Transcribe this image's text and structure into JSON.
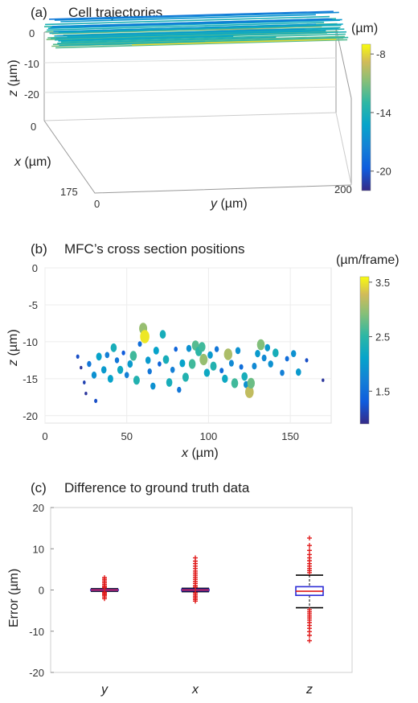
{
  "panels": {
    "a": {
      "letter": "(a)",
      "title": "Cell trajectories"
    },
    "b": {
      "letter": "(b)",
      "title": "MFC’s cross section positions"
    },
    "c": {
      "letter": "(c)",
      "title": "Difference to ground truth data"
    }
  },
  "chart_data": [
    {
      "id": "a",
      "type": "line",
      "title": "Cell trajectories",
      "zlabel_italic": "z",
      "zlabel_unit": " (µm)",
      "xlabel_italic": "x",
      "xlabel_unit": " (µm)",
      "ylabel_italic": "y",
      "ylabel_unit": " (µm)",
      "z_ticks": [
        "0",
        "-10",
        "-20"
      ],
      "x_ticks": [
        "0",
        "175"
      ],
      "y_ticks": [
        "0",
        "200"
      ],
      "zlim": [
        -25,
        0
      ],
      "xlim": [
        0,
        175
      ],
      "ylim": [
        0,
        200
      ],
      "colorbar": {
        "label": "(µm)",
        "min": -22,
        "max": -7,
        "ticks": [
          "-8",
          "-14",
          "-20"
        ],
        "tick_values": [
          -8,
          -14,
          -20
        ]
      },
      "trajectories": [
        {
          "x": 0,
          "z": -14,
          "y_start": 0,
          "y_end": 200,
          "color_value": -13
        },
        {
          "x": 5,
          "z": -12,
          "y_start": 5,
          "y_end": 190,
          "color_value": -10
        },
        {
          "x": 10,
          "z": -15,
          "y_start": 0,
          "y_end": 195,
          "color_value": -14
        },
        {
          "x": 15,
          "z": -13,
          "y_start": 0,
          "y_end": 200,
          "color_value": -12
        },
        {
          "x": 20,
          "z": -16,
          "y_start": 10,
          "y_end": 185,
          "color_value": -16
        },
        {
          "x": 25,
          "z": -11,
          "y_start": 0,
          "y_end": 200,
          "color_value": -11
        },
        {
          "x": 30,
          "z": -14,
          "y_start": 0,
          "y_end": 190,
          "color_value": -14
        },
        {
          "x": 35,
          "z": -17,
          "y_start": 5,
          "y_end": 200,
          "color_value": -17
        },
        {
          "x": 40,
          "z": -12,
          "y_start": 0,
          "y_end": 180,
          "color_value": -12
        },
        {
          "x": 45,
          "z": -15,
          "y_start": 0,
          "y_end": 200,
          "color_value": -15
        },
        {
          "x": 50,
          "z": -13,
          "y_start": 10,
          "y_end": 200,
          "color_value": -13
        },
        {
          "x": 55,
          "z": -18,
          "y_start": 0,
          "y_end": 195,
          "color_value": -18
        },
        {
          "x": 60,
          "z": -14,
          "y_start": 0,
          "y_end": 200,
          "color_value": -14
        },
        {
          "x": 65,
          "z": -12,
          "y_start": 15,
          "y_end": 190,
          "color_value": -12
        },
        {
          "x": 70,
          "z": -16,
          "y_start": 0,
          "y_end": 200,
          "color_value": -16
        },
        {
          "x": 75,
          "z": -13,
          "y_start": 0,
          "y_end": 185,
          "color_value": -13
        },
        {
          "x": 80,
          "z": -15,
          "y_start": 5,
          "y_end": 200,
          "color_value": -15
        },
        {
          "x": 85,
          "z": -11,
          "y_start": 0,
          "y_end": 200,
          "color_value": -11
        },
        {
          "x": 90,
          "z": -17,
          "y_start": 0,
          "y_end": 190,
          "color_value": -17
        },
        {
          "x": 95,
          "z": -14,
          "y_start": 10,
          "y_end": 200,
          "color_value": -14
        },
        {
          "x": 100,
          "z": -12,
          "y_start": 0,
          "y_end": 200,
          "color_value": -12
        },
        {
          "x": 105,
          "z": -16,
          "y_start": 0,
          "y_end": 180,
          "color_value": -16
        },
        {
          "x": 110,
          "z": -13,
          "y_start": 5,
          "y_end": 200,
          "color_value": -13
        },
        {
          "x": 115,
          "z": -15,
          "y_start": 0,
          "y_end": 195,
          "color_value": -15
        },
        {
          "x": 120,
          "z": -14,
          "y_start": 0,
          "y_end": 200,
          "color_value": -14
        },
        {
          "x": 125,
          "z": -18,
          "y_start": 20,
          "y_end": 190,
          "color_value": -18
        },
        {
          "x": 130,
          "z": -12,
          "y_start": 0,
          "y_end": 200,
          "color_value": -12
        },
        {
          "x": 135,
          "z": -15,
          "y_start": 0,
          "y_end": 185,
          "color_value": -15
        },
        {
          "x": 140,
          "z": -13,
          "y_start": 10,
          "y_end": 200,
          "color_value": -13
        },
        {
          "x": 145,
          "z": -16,
          "y_start": 0,
          "y_end": 170,
          "color_value": -16
        },
        {
          "x": 150,
          "z": -14,
          "y_start": 0,
          "y_end": 150,
          "color_value": -14
        },
        {
          "x": 160,
          "z": -15,
          "y_start": 0,
          "y_end": 120,
          "color_value": -15
        },
        {
          "x": 170,
          "z": -14,
          "y_start": 0,
          "y_end": 100,
          "color_value": -14
        },
        {
          "x": 3,
          "z": -8,
          "y_start": 60,
          "y_end": 200,
          "color_value": -8
        }
      ]
    },
    {
      "id": "b",
      "type": "scatter",
      "title": "MFC’s cross section positions",
      "xlabel_italic": "x",
      "xlabel_unit": " (µm)",
      "ylabel_italic": "z",
      "ylabel_unit": " (µm)",
      "xlim": [
        0,
        175
      ],
      "ylim": [
        -21,
        0
      ],
      "x_ticks": [
        0,
        50,
        100,
        150
      ],
      "y_ticks": [
        0,
        -5,
        -10,
        -15,
        -20
      ],
      "grid": true,
      "colorbar": {
        "label": "(µm/frame)",
        "min": 0.9,
        "max": 3.6,
        "ticks": [
          "3.5",
          "2.5",
          "1.5"
        ],
        "tick_values": [
          3.5,
          2.5,
          1.5
        ]
      },
      "points": [
        {
          "x": 20,
          "z": -12,
          "v": 1.2
        },
        {
          "x": 22,
          "z": -13.5,
          "v": 1.0
        },
        {
          "x": 24,
          "z": -15.5,
          "v": 1.1
        },
        {
          "x": 25,
          "z": -17,
          "v": 1.0
        },
        {
          "x": 27,
          "z": -13,
          "v": 1.6
        },
        {
          "x": 30,
          "z": -14.5,
          "v": 1.9
        },
        {
          "x": 31,
          "z": -18,
          "v": 1.2
        },
        {
          "x": 33,
          "z": -12,
          "v": 2.1
        },
        {
          "x": 36,
          "z": -13.8,
          "v": 2.0
        },
        {
          "x": 38,
          "z": -11.8,
          "v": 1.7
        },
        {
          "x": 40,
          "z": -15,
          "v": 2.1
        },
        {
          "x": 42,
          "z": -10.8,
          "v": 2.3
        },
        {
          "x": 44,
          "z": -12.5,
          "v": 1.6
        },
        {
          "x": 46,
          "z": -13.8,
          "v": 2.2
        },
        {
          "x": 48,
          "z": -11.5,
          "v": 1.3
        },
        {
          "x": 50,
          "z": -14.5,
          "v": 1.7
        },
        {
          "x": 52,
          "z": -13,
          "v": 2.0
        },
        {
          "x": 54,
          "z": -11.9,
          "v": 2.6
        },
        {
          "x": 56,
          "z": -15.2,
          "v": 2.4
        },
        {
          "x": 58,
          "z": -10.3,
          "v": 1.5
        },
        {
          "x": 60,
          "z": -8.2,
          "v": 3.0
        },
        {
          "x": 61,
          "z": -9.3,
          "v": 3.5
        },
        {
          "x": 63,
          "z": -12.5,
          "v": 2.0
        },
        {
          "x": 64,
          "z": -14,
          "v": 1.6
        },
        {
          "x": 66,
          "z": -16,
          "v": 1.9
        },
        {
          "x": 68,
          "z": -11.2,
          "v": 2.1
        },
        {
          "x": 70,
          "z": -13,
          "v": 1.4
        },
        {
          "x": 72,
          "z": -9.0,
          "v": 2.3
        },
        {
          "x": 74,
          "z": -12.4,
          "v": 2.3
        },
        {
          "x": 76,
          "z": -15.5,
          "v": 2.3
        },
        {
          "x": 78,
          "z": -13.8,
          "v": 1.7
        },
        {
          "x": 80,
          "z": -11,
          "v": 1.4
        },
        {
          "x": 82,
          "z": -16.5,
          "v": 1.6
        },
        {
          "x": 84,
          "z": -12.9,
          "v": 2.1
        },
        {
          "x": 86,
          "z": -14.8,
          "v": 2.4
        },
        {
          "x": 88,
          "z": -10.9,
          "v": 1.9
        },
        {
          "x": 90,
          "z": -13,
          "v": 2.6
        },
        {
          "x": 92,
          "z": -10.5,
          "v": 2.7
        },
        {
          "x": 94,
          "z": -11.3,
          "v": 2.5
        },
        {
          "x": 96,
          "z": -10.7,
          "v": 2.6
        },
        {
          "x": 97,
          "z": -12.4,
          "v": 3.0
        },
        {
          "x": 99,
          "z": -14.2,
          "v": 2.2
        },
        {
          "x": 101,
          "z": -11.8,
          "v": 2.0
        },
        {
          "x": 103,
          "z": -13.3,
          "v": 2.4
        },
        {
          "x": 105,
          "z": -11.0,
          "v": 1.6
        },
        {
          "x": 108,
          "z": -13.9,
          "v": 1.5
        },
        {
          "x": 110,
          "z": -15.0,
          "v": 2.2
        },
        {
          "x": 112,
          "z": -11.7,
          "v": 3.1
        },
        {
          "x": 114,
          "z": -12.9,
          "v": 1.8
        },
        {
          "x": 116,
          "z": -15.6,
          "v": 2.6
        },
        {
          "x": 118,
          "z": -11.2,
          "v": 1.9
        },
        {
          "x": 120,
          "z": -13.4,
          "v": 1.5
        },
        {
          "x": 122,
          "z": -14.7,
          "v": 2.3
        },
        {
          "x": 123,
          "z": -15.8,
          "v": 1.9
        },
        {
          "x": 125,
          "z": -16.8,
          "v": 3.2
        },
        {
          "x": 126,
          "z": -15.6,
          "v": 2.8
        },
        {
          "x": 128,
          "z": -13.3,
          "v": 1.8
        },
        {
          "x": 130,
          "z": -11.6,
          "v": 2.0
        },
        {
          "x": 132,
          "z": -10.4,
          "v": 2.9
        },
        {
          "x": 134,
          "z": -12.2,
          "v": 1.8
        },
        {
          "x": 136,
          "z": -10.8,
          "v": 2.0
        },
        {
          "x": 138,
          "z": -13.0,
          "v": 1.9
        },
        {
          "x": 141,
          "z": -11.5,
          "v": 2.3
        },
        {
          "x": 145,
          "z": -14.2,
          "v": 1.7
        },
        {
          "x": 148,
          "z": -12.3,
          "v": 1.5
        },
        {
          "x": 152,
          "z": -11.6,
          "v": 1.9
        },
        {
          "x": 155,
          "z": -14.1,
          "v": 2.0
        },
        {
          "x": 160,
          "z": -12.5,
          "v": 1.2
        },
        {
          "x": 170,
          "z": -15.2,
          "v": 1.0
        }
      ]
    },
    {
      "id": "c",
      "type": "box",
      "title": "Difference to ground truth data",
      "ylabel": "Error (µm)",
      "ylim": [
        -20,
        20
      ],
      "y_ticks": [
        20,
        10,
        0,
        -10,
        -20
      ],
      "categories": [
        "y",
        "x",
        "z"
      ],
      "boxes": [
        {
          "name": "y",
          "q1": -0.15,
          "median": 0,
          "q3": 0.15,
          "whisker_low": -0.3,
          "whisker_high": 0.3,
          "outliers": [
            3.0,
            2.6,
            2.2,
            1.8,
            1.4,
            1.0,
            0.7,
            0.5,
            -0.5,
            -0.7,
            -1.0,
            -1.3,
            -1.7,
            -2.1
          ]
        },
        {
          "name": "x",
          "q1": -0.2,
          "median": 0,
          "q3": 0.2,
          "whisker_low": -0.4,
          "whisker_high": 0.4,
          "outliers": [
            7.8,
            7.0,
            6.4,
            5.8,
            5.2,
            4.6,
            4.1,
            3.6,
            3.1,
            2.6,
            2.1,
            1.6,
            1.1,
            0.7,
            -0.7,
            -1.1,
            -1.5,
            -1.9,
            -2.3,
            -2.7
          ]
        },
        {
          "name": "z",
          "q1": -1.3,
          "median": -0.3,
          "q3": 0.8,
          "whisker_low": -4.3,
          "whisker_high": 3.6,
          "outliers": [
            12.6,
            10.8,
            9.6,
            8.6,
            7.8,
            7.1,
            6.4,
            5.8,
            5.2,
            4.7,
            4.2,
            -4.8,
            -5.3,
            -5.8,
            -6.3,
            -6.8,
            -7.3,
            -7.9,
            -8.6,
            -9.3,
            -10.1,
            -11.0,
            -12.3
          ]
        }
      ]
    }
  ]
}
